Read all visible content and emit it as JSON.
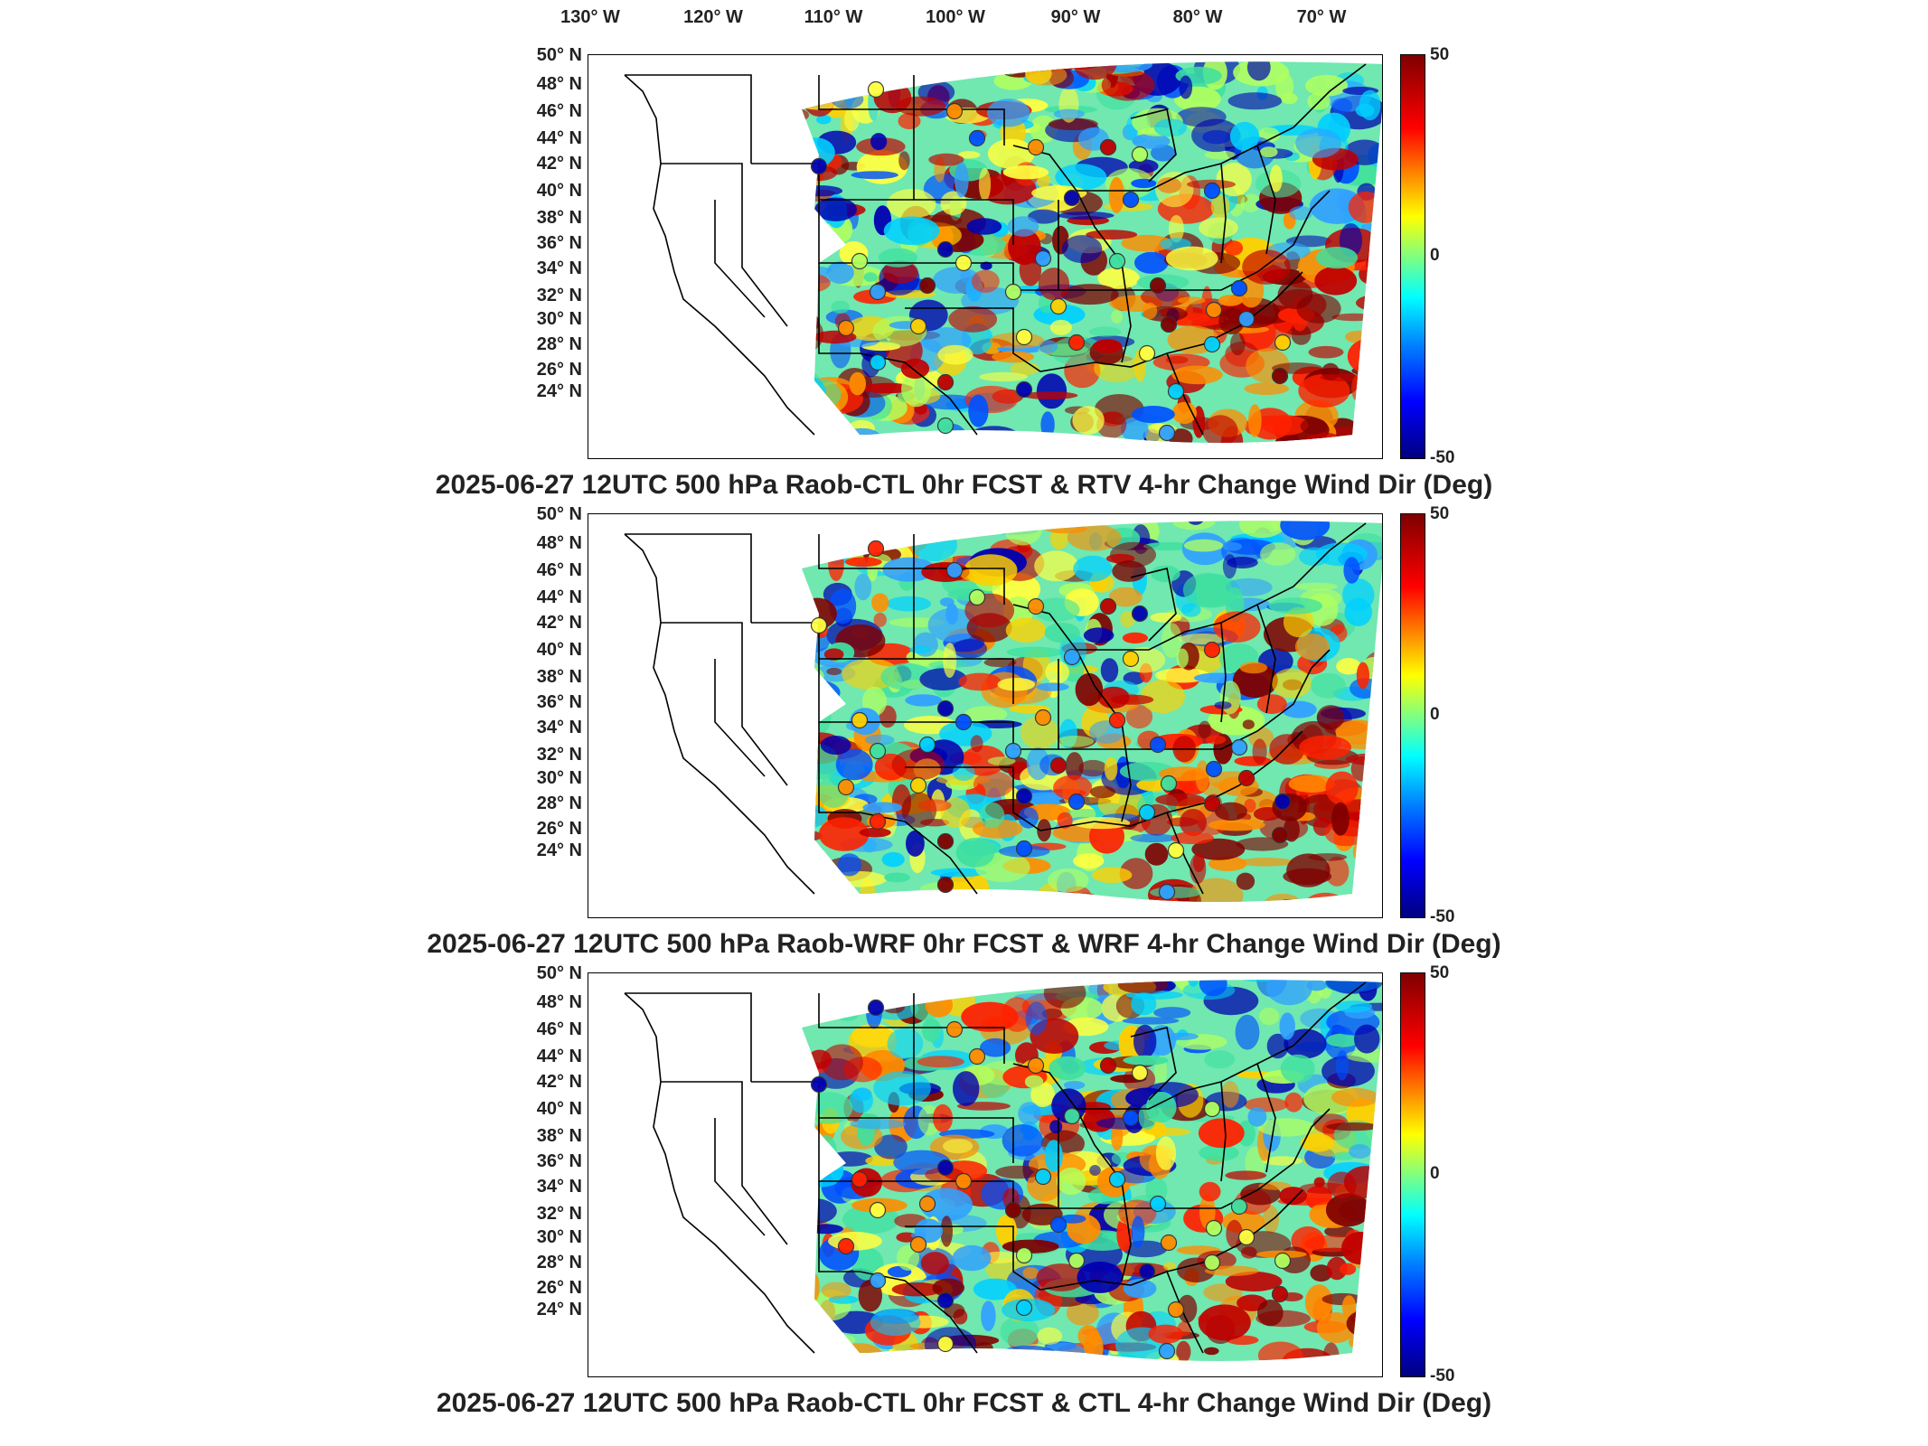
{
  "lon_labels": [
    "130° W",
    "120° W",
    "110° W",
    "100° W",
    "90° W",
    "80° W",
    "70° W"
  ],
  "lat_labels": [
    "50° N",
    "48° N",
    "46° N",
    "44° N",
    "42° N",
    "40° N",
    "38° N",
    "36° N",
    "34° N",
    "32° N",
    "30° N",
    "28° N",
    "26° N",
    "24° N"
  ],
  "colorbar": {
    "max": "50",
    "mid": "0",
    "min": "-50"
  },
  "colors": {
    "high": "#7f0000",
    "mid": "#80ff80",
    "low": "#00007f"
  },
  "panels": [
    {
      "title": "2025-06-27 12UTC 500 hPa Raob-CTL 0hr FCST & RTV 4-hr Change Wind Dir (Deg)"
    },
    {
      "title": "2025-06-27 12UTC 500 hPa Raob-WRF 0hr FCST & WRF 4-hr Change Wind Dir (Deg)"
    },
    {
      "title": "2025-06-27 12UTC 500 hPa Raob-CTL 0hr FCST & CTL 4-hr Change Wind Dir (Deg)"
    }
  ]
}
